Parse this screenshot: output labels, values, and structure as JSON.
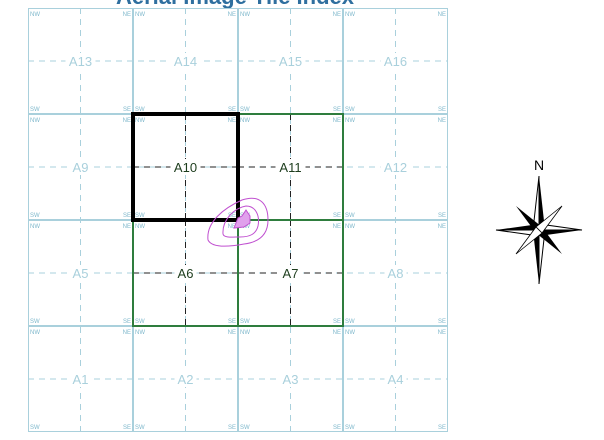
{
  "title": "Aerial Image Tile Index",
  "tiles": [
    {
      "label": "A13",
      "row": 0,
      "col": 0
    },
    {
      "label": "A14",
      "row": 0,
      "col": 1
    },
    {
      "label": "A15",
      "row": 0,
      "col": 2
    },
    {
      "label": "A16",
      "row": 0,
      "col": 3
    },
    {
      "label": "A9",
      "row": 1,
      "col": 0
    },
    {
      "label": "A10",
      "row": 1,
      "col": 1,
      "state": "selected"
    },
    {
      "label": "A11",
      "row": 1,
      "col": 2,
      "state": "included"
    },
    {
      "label": "A12",
      "row": 1,
      "col": 3
    },
    {
      "label": "A5",
      "row": 2,
      "col": 0
    },
    {
      "label": "A6",
      "row": 2,
      "col": 1,
      "state": "included"
    },
    {
      "label": "A7",
      "row": 2,
      "col": 2,
      "state": "included"
    },
    {
      "label": "A8",
      "row": 2,
      "col": 3
    },
    {
      "label": "A1",
      "row": 3,
      "col": 0
    },
    {
      "label": "A2",
      "row": 3,
      "col": 1
    },
    {
      "label": "A3",
      "row": 3,
      "col": 2
    },
    {
      "label": "A4",
      "row": 3,
      "col": 3
    }
  ],
  "corner_labels": {
    "nw": "NW",
    "ne": "NE",
    "sw": "SW",
    "se": "SE"
  },
  "compass": {
    "north_label": "N"
  },
  "colors": {
    "grid_line": "#a9d0dc",
    "grid_dash": "#a9d0dc",
    "label_default": "#a9d0dc",
    "included_border": "#2e7d3e",
    "selected_border": "#000000",
    "label_active": "#1d3d1d",
    "contour": "#c050d0",
    "title": "#2f6f9f"
  }
}
